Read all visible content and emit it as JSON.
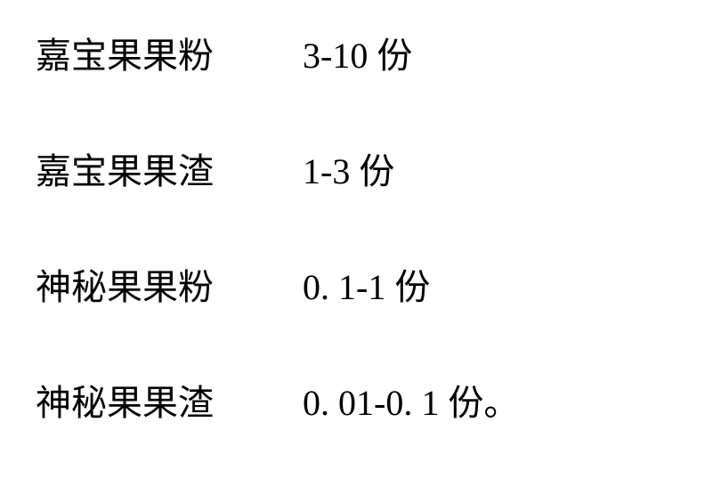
{
  "text_color": "#000000",
  "background_color": "#ffffff",
  "font_family": "SimSun",
  "rows": [
    {
      "label": "嘉宝果果粉",
      "value": "3-10 份"
    },
    {
      "label": "嘉宝果果渣",
      "value": "1-3 份"
    },
    {
      "label": "神秘果果粉",
      "value": "0. 1-1 份"
    },
    {
      "label": "神秘果果渣",
      "value": "0. 01-0. 1 份。"
    }
  ]
}
